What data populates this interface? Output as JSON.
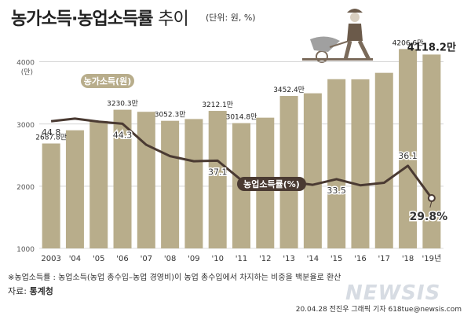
{
  "header": {
    "title_main": "농가소득·농업소득률",
    "title_light": "추이",
    "unit": "(단위: 원, %)"
  },
  "footnote": "※농업소득률 : 농업소득(농업 총수입–농업 경영비)이 농업 총수입에서 차지하는 비중을 백분율로 환산",
  "source": {
    "label": "자료:",
    "value": "통계청"
  },
  "credit": "20.04.28 전진우 그래픽 기자 618tue@newsis.com",
  "watermark": "NEWSIS",
  "colors": {
    "bar": "#b8ad8b",
    "line": "#4a3a32",
    "grid": "#bdbdbd",
    "text": "#333333"
  },
  "chart_data": {
    "type": "bar",
    "categories": [
      "2003",
      "'04",
      "'05",
      "'06",
      "'07",
      "'08",
      "'09",
      "'10",
      "'11",
      "'12",
      "'13",
      "'14",
      "'15",
      "'16",
      "'17",
      "'18",
      "'19년"
    ],
    "ylim": [
      1000,
      4300
    ],
    "yticks": [
      "1000",
      "2000",
      "3000",
      "4000"
    ],
    "yunit": "(만)",
    "series": [
      {
        "name": "농가소득(원)",
        "kind": "bar",
        "values": [
          2687.8,
          2900,
          3050,
          3230.3,
          3197,
          3052.3,
          3081,
          3212.1,
          3014.8,
          3103,
          3452.4,
          3495,
          3722,
          3720,
          3824,
          4206.6,
          4118.2
        ],
        "labels": [
          "2687.8만",
          "",
          "",
          "3230.3만",
          "",
          "3052.3만",
          "",
          "3212.1만",
          "3014.8만",
          "",
          "3452.4만",
          "",
          "",
          "",
          "",
          "4206.6만",
          "4118.2만"
        ]
      },
      {
        "name": "농업소득률(%)",
        "kind": "line",
        "values": [
          44.8,
          45.3,
          44.7,
          44.3,
          40.2,
          38.0,
          37.0,
          37.1,
          33.3,
          33.3,
          33.0,
          32.4,
          33.5,
          32.3,
          32.8,
          36.1,
          29.8
        ],
        "labels": [
          "44.8",
          "",
          "",
          "44.3",
          "",
          "",
          "",
          "37.1",
          "",
          "",
          "",
          "",
          "33.5",
          "",
          "",
          "36.1",
          "29.8%"
        ],
        "ylim": [
          20,
          60
        ]
      }
    ]
  }
}
